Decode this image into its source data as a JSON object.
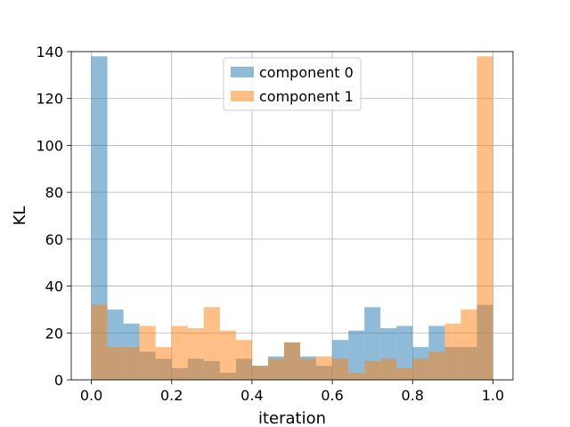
{
  "chart_data": {
    "type": "bar",
    "title": "",
    "xlabel": "iteration",
    "ylabel": "KL",
    "xlim": [
      -0.05,
      1.05
    ],
    "ylim": [
      0,
      140
    ],
    "bin_edges": [
      0.0,
      0.04,
      0.08,
      0.12,
      0.16,
      0.2,
      0.24,
      0.28,
      0.32,
      0.36,
      0.4,
      0.44,
      0.48,
      0.52,
      0.56,
      0.6,
      0.64,
      0.68,
      0.72,
      0.76,
      0.8,
      0.84,
      0.88,
      0.92,
      0.96,
      1.0
    ],
    "x_ticks": [
      "0.0",
      "0.2",
      "0.4",
      "0.6",
      "0.8",
      "1.0"
    ],
    "y_ticks": [
      "0",
      "20",
      "40",
      "60",
      "80",
      "100",
      "120",
      "140"
    ],
    "grid": true,
    "legend_position": "top-center",
    "series": [
      {
        "name": "component 0",
        "color": "#1f77b4",
        "alpha": 0.5,
        "values": [
          138,
          30,
          24,
          12,
          9,
          5,
          9,
          8,
          3,
          9,
          6,
          10,
          16,
          10,
          6,
          17,
          21,
          31,
          22,
          23,
          14,
          23,
          14,
          14,
          32
        ]
      },
      {
        "name": "component 1",
        "color": "#ff7f0e",
        "alpha": 0.5,
        "values": [
          32,
          14,
          14,
          23,
          14,
          23,
          22,
          31,
          21,
          17,
          6,
          9,
          16,
          9,
          10,
          9,
          3,
          8,
          9,
          5,
          9,
          12,
          24,
          30,
          138
        ]
      }
    ]
  }
}
